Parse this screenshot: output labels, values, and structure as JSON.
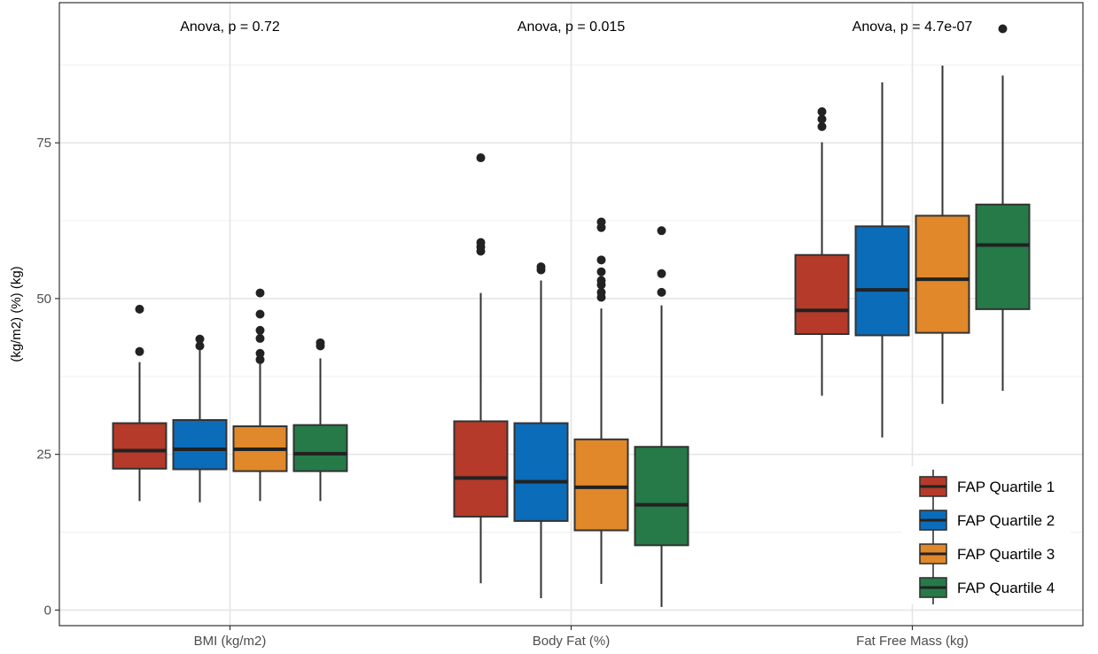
{
  "chart_data": {
    "type": "boxplot",
    "title": "",
    "xlabel": "",
    "ylabel": "(kg/m2) (%) (kg)",
    "ylim": [
      -2.5,
      97.5
    ],
    "yticks": [
      0,
      25,
      50,
      75
    ],
    "grid": true,
    "legend_position": "bottom-right",
    "categories": [
      "BMI (kg/m2)",
      "Body Fat (%)",
      "Fat Free Mass (kg)"
    ],
    "annotations": [
      "Anova, p = 0.72",
      "Anova, p = 0.015",
      "Anova, p = 4.7e-07"
    ],
    "series": [
      {
        "name": "FAP Quartile 1",
        "color": "#b53a29",
        "boxes": [
          {
            "min": 17.5,
            "q1": 22.7,
            "median": 25.6,
            "q3": 30.0,
            "max": 39.8,
            "outliers": [
              41.5,
              48.3
            ]
          },
          {
            "min": 4.3,
            "q1": 15.0,
            "median": 21.2,
            "q3": 30.3,
            "max": 50.9,
            "outliers": [
              57.6,
              58.3,
              59.0,
              72.6
            ]
          },
          {
            "min": 34.4,
            "q1": 44.3,
            "median": 48.1,
            "q3": 57.0,
            "max": 75.1,
            "outliers": [
              77.6,
              78.8,
              80.0
            ]
          }
        ]
      },
      {
        "name": "FAP Quartile 2",
        "color": "#0b6cba",
        "boxes": [
          {
            "min": 17.3,
            "q1": 22.6,
            "median": 25.8,
            "q3": 30.5,
            "max": 41.7,
            "outliers": [
              42.4,
              43.5
            ]
          },
          {
            "min": 1.9,
            "q1": 14.3,
            "median": 20.6,
            "q3": 30.0,
            "max": 52.9,
            "outliers": [
              54.6,
              55.1
            ]
          },
          {
            "min": 27.7,
            "q1": 44.1,
            "median": 51.4,
            "q3": 61.6,
            "max": 84.7,
            "outliers": []
          }
        ]
      },
      {
        "name": "FAP Quartile 3",
        "color": "#e0882a",
        "boxes": [
          {
            "min": 17.5,
            "q1": 22.3,
            "median": 25.8,
            "q3": 29.5,
            "max": 39.5,
            "outliers": [
              40.2,
              41.2,
              43.6,
              44.9,
              47.5,
              50.9
            ]
          },
          {
            "min": 4.2,
            "q1": 12.8,
            "median": 19.7,
            "q3": 27.4,
            "max": 48.4,
            "outliers": [
              50.2,
              51.0,
              52.2,
              52.9,
              54.3,
              56.2,
              61.4,
              62.3
            ]
          },
          {
            "min": 33.1,
            "q1": 44.5,
            "median": 53.1,
            "q3": 63.3,
            "max": 87.4,
            "outliers": []
          }
        ]
      },
      {
        "name": "FAP Quartile 4",
        "color": "#257a48",
        "boxes": [
          {
            "min": 17.5,
            "q1": 22.3,
            "median": 25.1,
            "q3": 29.7,
            "max": 40.4,
            "outliers": [
              42.4,
              42.9
            ]
          },
          {
            "min": 0.5,
            "q1": 10.4,
            "median": 16.9,
            "q3": 26.2,
            "max": 48.9,
            "outliers": [
              51.0,
              54.0,
              60.9
            ]
          },
          {
            "min": 35.2,
            "q1": 48.3,
            "median": 58.6,
            "q3": 65.1,
            "max": 85.8,
            "outliers": [
              93.3
            ]
          }
        ]
      }
    ]
  }
}
